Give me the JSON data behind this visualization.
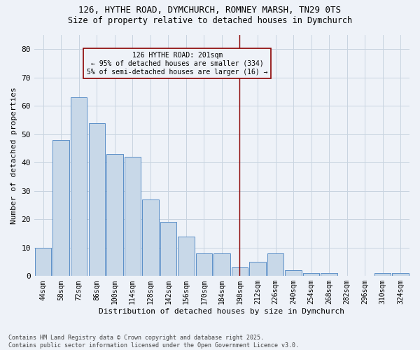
{
  "title1": "126, HYTHE ROAD, DYMCHURCH, ROMNEY MARSH, TN29 0TS",
  "title2": "Size of property relative to detached houses in Dymchurch",
  "xlabel": "Distribution of detached houses by size in Dymchurch",
  "ylabel": "Number of detached properties",
  "bar_labels": [
    "44sqm",
    "58sqm",
    "72sqm",
    "86sqm",
    "100sqm",
    "114sqm",
    "128sqm",
    "142sqm",
    "156sqm",
    "170sqm",
    "184sqm",
    "198sqm",
    "212sqm",
    "226sqm",
    "240sqm",
    "254sqm",
    "268sqm",
    "282sqm",
    "296sqm",
    "310sqm",
    "324sqm"
  ],
  "bar_values": [
    10,
    48,
    63,
    54,
    43,
    42,
    27,
    19,
    14,
    8,
    8,
    3,
    5,
    8,
    2,
    1,
    1,
    0,
    0,
    1,
    1
  ],
  "bar_color": "#c8d8e8",
  "bar_edge_color": "#5b8fc7",
  "grid_color": "#c8d4e0",
  "background_color": "#eef2f8",
  "vline_x_index": 11,
  "vline_color": "#8b0000",
  "annotation_text": "126 HYTHE ROAD: 201sqm\n← 95% of detached houses are smaller (334)\n5% of semi-detached houses are larger (16) →",
  "annotation_box_color": "#8b0000",
  "ylim": [
    0,
    85
  ],
  "yticks": [
    0,
    10,
    20,
    30,
    40,
    50,
    60,
    70,
    80
  ],
  "footer": "Contains HM Land Registry data © Crown copyright and database right 2025.\nContains public sector information licensed under the Open Government Licence v3.0.",
  "title_fontsize": 9,
  "subtitle_fontsize": 8.5,
  "tick_fontsize": 7,
  "ylabel_fontsize": 8,
  "xlabel_fontsize": 8,
  "footer_fontsize": 6
}
